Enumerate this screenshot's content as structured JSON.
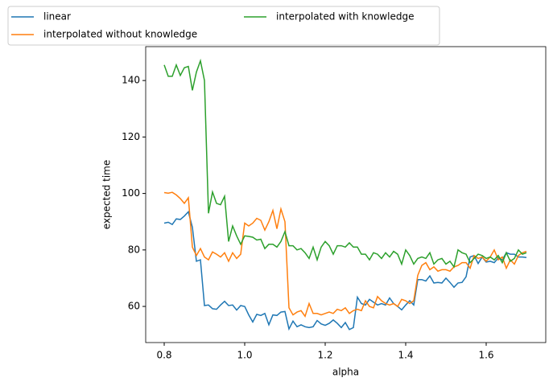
{
  "chart_data": {
    "type": "line",
    "xlabel": "alpha",
    "ylabel": "expected time",
    "x": [
      0.8,
      0.81,
      0.82,
      0.83,
      0.84,
      0.85,
      0.86,
      0.87,
      0.88,
      0.89,
      0.9,
      0.91,
      0.92,
      0.93,
      0.94,
      0.95,
      0.96,
      0.97,
      0.98,
      0.99,
      1.0,
      1.01,
      1.02,
      1.03,
      1.04,
      1.05,
      1.06,
      1.07,
      1.08,
      1.09,
      1.1,
      1.11,
      1.12,
      1.13,
      1.14,
      1.15,
      1.16,
      1.17,
      1.18,
      1.19,
      1.2,
      1.21,
      1.22,
      1.23,
      1.24,
      1.25,
      1.26,
      1.27,
      1.28,
      1.29,
      1.3,
      1.31,
      1.32,
      1.33,
      1.34,
      1.35,
      1.36,
      1.37,
      1.38,
      1.39,
      1.4,
      1.41,
      1.42,
      1.43,
      1.44,
      1.45,
      1.46,
      1.47,
      1.48,
      1.49,
      1.5,
      1.51,
      1.52,
      1.53,
      1.54,
      1.55,
      1.56,
      1.57,
      1.58,
      1.59,
      1.6,
      1.61,
      1.62,
      1.63,
      1.64,
      1.65,
      1.66,
      1.67,
      1.68,
      1.69,
      1.7
    ],
    "series": [
      {
        "name": "linear",
        "color": "#1f77b4",
        "values": [
          89.5,
          89.8,
          89,
          91,
          90.8,
          92,
          93.5,
          88,
          76,
          76.5,
          60.3,
          60.5,
          59.2,
          59,
          60.5,
          61.8,
          60.3,
          60.5,
          58.7,
          60.3,
          60,
          57,
          54.5,
          57.2,
          56.8,
          57.5,
          53.5,
          57,
          56.8,
          58,
          58.2,
          52,
          54.8,
          52.8,
          53.5,
          52.8,
          52.5,
          52.8,
          55,
          53.8,
          53.3,
          54,
          55.2,
          54,
          52.5,
          54.3,
          51.8,
          52.5,
          63.3,
          61,
          60.5,
          62.5,
          61.5,
          60.5,
          61,
          60.5,
          63,
          61,
          60,
          58.8,
          60.5,
          62,
          60.5,
          69.5,
          69.5,
          69,
          70.8,
          68.3,
          68.5,
          68.3,
          70,
          68.5,
          66.8,
          68.3,
          68.5,
          70.5,
          77.5,
          78,
          75.2,
          77.5,
          75.7,
          76,
          75.5,
          77.2,
          76.5,
          79,
          78.5,
          78.5,
          77.5,
          77.5,
          77.3
        ]
      },
      {
        "name": "interpolated without knowledge",
        "color": "#ff7f0e",
        "values": [
          100.3,
          100.1,
          100.4,
          99.5,
          98.2,
          96.5,
          98.5,
          81,
          78,
          80.5,
          77.5,
          76.5,
          79.3,
          78.5,
          77.5,
          79,
          76,
          79,
          77,
          78.5,
          89.5,
          88.5,
          89.5,
          91.2,
          90.5,
          87,
          90,
          94,
          87.5,
          94.5,
          90,
          59.5,
          57,
          58,
          58.5,
          56.5,
          61,
          57.5,
          57.5,
          57,
          57.5,
          58,
          57.5,
          59,
          58.5,
          59.5,
          57.5,
          58.5,
          59,
          58.5,
          62,
          60,
          59.5,
          63.5,
          62,
          61,
          60.5,
          61,
          60,
          62.5,
          62,
          61,
          62,
          71,
          74.5,
          75.5,
          73,
          74,
          72.5,
          73,
          73,
          72.5,
          74,
          74.5,
          75.5,
          75.5,
          73.5,
          78,
          77,
          77.5,
          76,
          77.5,
          80,
          76.5,
          77.5,
          73.5,
          76.5,
          75,
          78,
          79,
          79.5
        ]
      },
      {
        "name": "interpolated with knowledge",
        "color": "#2ca02c",
        "values": [
          145.5,
          141.5,
          141.5,
          145.5,
          141.8,
          144.5,
          145,
          136.5,
          143,
          147,
          140,
          93,
          100.5,
          96.5,
          96,
          99,
          83,
          88.5,
          85,
          82,
          85,
          84.8,
          84.5,
          83.5,
          83.8,
          80.5,
          82,
          82,
          81,
          83,
          86.5,
          81.5,
          81.5,
          80,
          80.5,
          79,
          77,
          81,
          76.5,
          81,
          83,
          81.5,
          78.5,
          81.5,
          81.5,
          81,
          82.5,
          81,
          81,
          78.5,
          78.5,
          76.5,
          79,
          78.5,
          77,
          79,
          77.5,
          79.5,
          78.5,
          75,
          80,
          78,
          75,
          77,
          77.5,
          77,
          79,
          75,
          76.5,
          77,
          75,
          76,
          74,
          80,
          79,
          78.5,
          75.5,
          77,
          78.5,
          78,
          77,
          77.5,
          76.5,
          78,
          75.5,
          79,
          76,
          77,
          80,
          78.5,
          79
        ]
      }
    ],
    "xlim": [
      0.754,
      1.748
    ],
    "xticks": [
      0.8,
      {
        "value": 1,
        "label": "1.0"
      },
      1.2,
      1.4,
      1.6
    ],
    "ylim": [
      47.2,
      152
    ],
    "yticks": [
      60,
      80,
      100,
      120,
      140
    ],
    "legend": "upper left",
    "legend_columns": 2
  }
}
